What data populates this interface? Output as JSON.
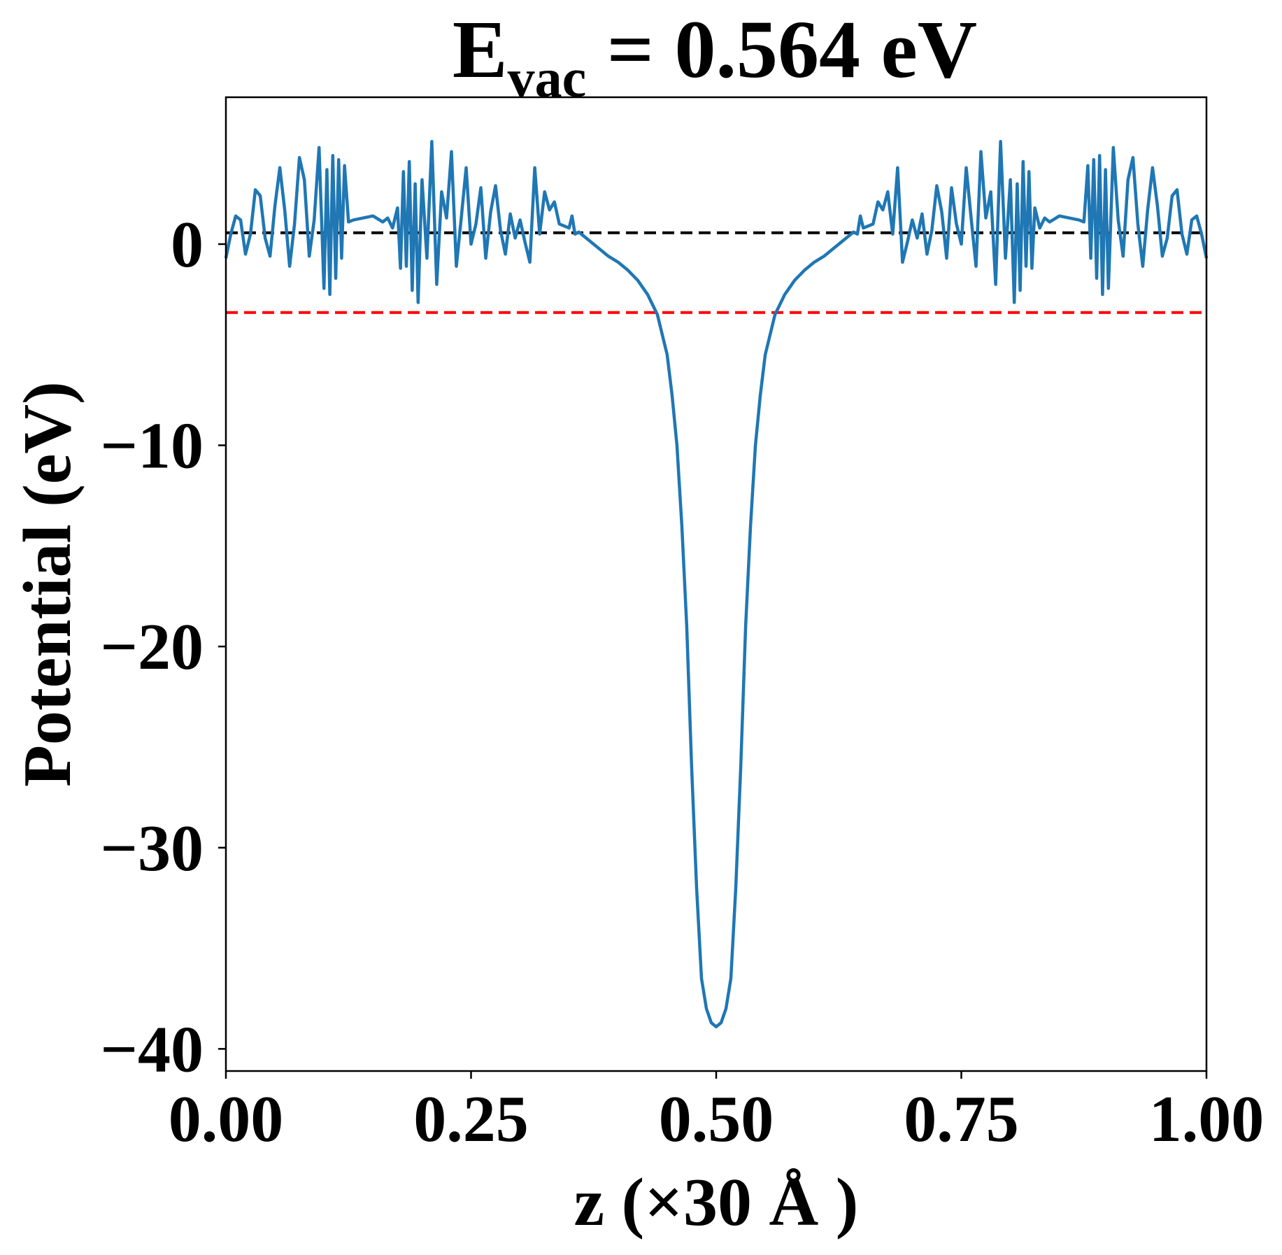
{
  "chart_data": {
    "type": "line",
    "title": {
      "main": "E",
      "sub": "vac",
      "rest": " = 0.564 eV"
    },
    "xlabel": "z (×30 Å )",
    "ylabel": "Potential (eV)",
    "xlim": [
      0,
      1
    ],
    "ylim": [
      -41.1,
      7.3
    ],
    "xticks": [
      {
        "value": 0,
        "label": "0.00"
      },
      {
        "value": 0.25,
        "label": "0.25"
      },
      {
        "value": 0.5,
        "label": "0.50"
      },
      {
        "value": 0.75,
        "label": "0.75"
      },
      {
        "value": 1,
        "label": "1.00"
      }
    ],
    "yticks": [
      0,
      {
        "value": -10,
        "label": "−10"
      },
      {
        "value": -20,
        "label": "−20"
      },
      {
        "value": -30,
        "label": "−30"
      },
      {
        "value": -40,
        "label": "−40"
      }
    ],
    "hlines": [
      {
        "value": 0.564,
        "color": "#000000"
      },
      {
        "value": -3.4,
        "color": "#ff0000"
      }
    ],
    "x": [
      0,
      0.005,
      0.01,
      0.015,
      0.02,
      0.025,
      0.03,
      0.035,
      0.04,
      0.045,
      0.05,
      0.055,
      0.06,
      0.065,
      0.07,
      0.075,
      0.08,
      0.085,
      0.09,
      0.095,
      0.1,
      0.103,
      0.106,
      0.109,
      0.112,
      0.115,
      0.118,
      0.121,
      0.125,
      0.13,
      0.14,
      0.15,
      0.16,
      0.165,
      0.17,
      0.175,
      0.178,
      0.181,
      0.184,
      0.187,
      0.19,
      0.193,
      0.196,
      0.2,
      0.205,
      0.21,
      0.215,
      0.22,
      0.225,
      0.23,
      0.235,
      0.24,
      0.245,
      0.25,
      0.255,
      0.26,
      0.265,
      0.27,
      0.275,
      0.28,
      0.285,
      0.29,
      0.295,
      0.3,
      0.305,
      0.31,
      0.315,
      0.32,
      0.325,
      0.33,
      0.335,
      0.34,
      0.345,
      0.35,
      0.353,
      0.356,
      0.36,
      0.37,
      0.38,
      0.39,
      0.4,
      0.41,
      0.42,
      0.43,
      0.44,
      0.45,
      0.455,
      0.46,
      0.465,
      0.47,
      0.475,
      0.48,
      0.485,
      0.49,
      0.495,
      0.5,
      0.505,
      0.51,
      0.515,
      0.52,
      0.525,
      0.53,
      0.535,
      0.54,
      0.545,
      0.55,
      0.56,
      0.57,
      0.58,
      0.59,
      0.6,
      0.61,
      0.62,
      0.63,
      0.64,
      0.644,
      0.647,
      0.65,
      0.655,
      0.66,
      0.665,
      0.67,
      0.675,
      0.68,
      0.685,
      0.69,
      0.695,
      0.7,
      0.705,
      0.71,
      0.715,
      0.72,
      0.725,
      0.73,
      0.735,
      0.74,
      0.745,
      0.75,
      0.755,
      0.76,
      0.765,
      0.77,
      0.775,
      0.78,
      0.785,
      0.79,
      0.795,
      0.8,
      0.804,
      0.807,
      0.81,
      0.813,
      0.816,
      0.819,
      0.822,
      0.825,
      0.83,
      0.835,
      0.84,
      0.85,
      0.86,
      0.87,
      0.875,
      0.879,
      0.882,
      0.885,
      0.888,
      0.891,
      0.894,
      0.897,
      0.9,
      0.905,
      0.91,
      0.915,
      0.92,
      0.925,
      0.93,
      0.935,
      0.94,
      0.945,
      0.95,
      0.955,
      0.96,
      0.965,
      0.97,
      0.975,
      0.98,
      0.985,
      0.99,
      0.995,
      1
    ],
    "series": [
      {
        "color": "#1f77b4",
        "values": [
          -0.7,
          0.5,
          1.4,
          1.2,
          -0.5,
          0.5,
          2.7,
          2.4,
          0.3,
          -0.6,
          1.9,
          3.8,
          1.7,
          -1.1,
          1.0,
          4.3,
          3.2,
          -0.6,
          1.2,
          4.8,
          -2.2,
          3.7,
          -2.5,
          4.4,
          -1.7,
          4.2,
          -0.7,
          3.9,
          1.1,
          1.2,
          1.3,
          1.4,
          1.1,
          1.3,
          0.8,
          1.8,
          -1.2,
          3.6,
          -1.1,
          4.1,
          -2.3,
          3.0,
          -2.9,
          3.2,
          -0.7,
          5.1,
          -2.0,
          2.6,
          1.3,
          4.6,
          -1.1,
          1.3,
          3.8,
          0.0,
          1.0,
          2.8,
          -0.7,
          1.6,
          2.9,
          0.7,
          -0.5,
          1.5,
          0.3,
          1.2,
          0.1,
          -0.9,
          3.8,
          0.5,
          2.6,
          1.7,
          2.1,
          1.0,
          0.9,
          0.8,
          1.4,
          0.5,
          0.6,
          0.2,
          -0.2,
          -0.6,
          -0.9,
          -1.3,
          -1.8,
          -2.5,
          -3.5,
          -5.5,
          -7.5,
          -10,
          -14,
          -19,
          -26,
          -32,
          -36.5,
          -38,
          -38.7,
          -38.9,
          -38.7,
          -38,
          -36.5,
          -32,
          -26,
          -19,
          -14,
          -10,
          -7.5,
          -5.5,
          -3.5,
          -2.5,
          -1.8,
          -1.3,
          -0.9,
          -0.6,
          -0.2,
          0.2,
          0.6,
          0.5,
          1.4,
          0.8,
          0.9,
          1.0,
          2.1,
          1.7,
          2.6,
          0.5,
          3.8,
          -0.9,
          0.1,
          1.2,
          0.3,
          1.5,
          -0.5,
          0.7,
          2.9,
          1.6,
          -0.7,
          2.8,
          1.0,
          0.0,
          3.8,
          1.3,
          -1.1,
          4.6,
          1.3,
          2.6,
          -2.0,
          5.1,
          -0.7,
          3.2,
          -2.9,
          3.0,
          -2.3,
          4.1,
          -1.1,
          3.6,
          -1.2,
          1.8,
          0.8,
          1.3,
          1.1,
          1.4,
          1.3,
          1.2,
          1.1,
          3.9,
          -0.7,
          4.2,
          -1.7,
          4.4,
          -2.5,
          3.7,
          -2.2,
          4.8,
          1.2,
          -0.6,
          3.2,
          4.3,
          1.0,
          -1.1,
          1.7,
          3.8,
          1.9,
          -0.6,
          0.3,
          2.4,
          2.7,
          0.5,
          -0.5,
          1.2,
          1.4,
          0.5,
          -0.7
        ]
      }
    ]
  }
}
